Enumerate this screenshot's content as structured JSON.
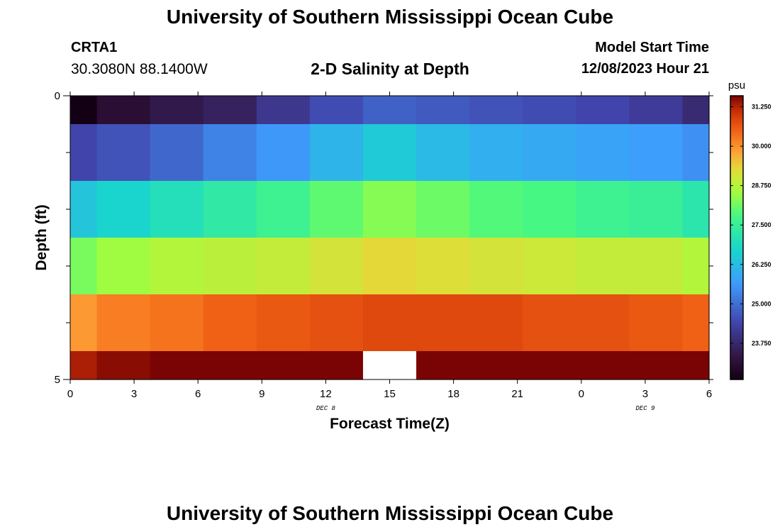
{
  "header": {
    "title": "University of Southern Mississippi Ocean Cube",
    "station": "CRTA1",
    "coords": "30.3080N  88.1400W",
    "subtitle": "2-D Salinity at Depth",
    "model_start_label": "Model Start Time",
    "model_start_value": "12/08/2023 Hour 21"
  },
  "footer": {
    "title": "University of Southern Mississippi Ocean Cube"
  },
  "chart_data": {
    "type": "heatmap",
    "title": "2-D Salinity at Depth",
    "xlabel": "Forecast Time(Z)",
    "ylabel": "Depth (ft)",
    "x_hours": [
      0,
      3,
      6,
      9,
      12,
      15,
      18,
      21,
      24,
      27,
      30
    ],
    "x_tick_labels": [
      "0",
      "3",
      "6",
      "9",
      "12",
      "15",
      "18",
      "21",
      "0",
      "3",
      "6"
    ],
    "xlim": [
      0,
      30
    ],
    "date_labels": [
      {
        "text": "DEC 8",
        "hour": 12
      },
      {
        "text": "DEC 9",
        "hour": 27
      }
    ],
    "ylim": [
      0,
      5
    ],
    "y_tick_labels": [
      {
        "value": 0,
        "label": "0"
      },
      {
        "value": 5,
        "label": "5"
      }
    ],
    "y_minor_ticks": [
      1,
      2,
      3,
      4
    ],
    "column_edges": [
      0,
      1.25,
      3.75,
      6.25,
      8.75,
      11.25,
      13.75,
      16.25,
      18.75,
      21.25,
      23.75,
      26.25,
      28.75,
      30
    ],
    "row_edges": [
      0,
      0.5,
      1.5,
      2.5,
      3.5,
      4.5,
      5
    ],
    "values": [
      [
        22.4,
        23.1,
        23.4,
        23.6,
        24.1,
        24.5,
        24.8,
        24.7,
        24.6,
        24.5,
        24.4,
        24.2,
        23.8
      ],
      [
        24.4,
        24.6,
        24.9,
        25.3,
        25.6,
        26.1,
        26.5,
        26.2,
        26.0,
        25.9,
        25.8,
        25.7,
        25.5
      ],
      [
        26.4,
        26.7,
        27.0,
        27.3,
        27.6,
        28.0,
        28.3,
        28.1,
        27.9,
        27.8,
        27.6,
        27.5,
        27.2
      ],
      [
        28.2,
        28.5,
        28.7,
        28.8,
        28.9,
        29.1,
        29.3,
        29.2,
        29.1,
        29.0,
        28.9,
        28.9,
        28.7
      ],
      [
        29.9,
        30.2,
        30.3,
        30.5,
        30.6,
        30.7,
        30.8,
        30.8,
        30.8,
        30.7,
        30.7,
        30.6,
        30.5
      ],
      [
        31.3,
        31.5,
        31.6,
        31.8,
        32.0,
        32.2,
        null,
        32.4,
        32.3,
        32.2,
        32.1,
        32.0,
        31.8
      ]
    ],
    "colorbar": {
      "unit": "psu",
      "min": 22.6,
      "max": 31.6,
      "ticks": [
        "31.250",
        "30.000",
        "28.750",
        "27.500",
        "26.250",
        "25.000",
        "23.750"
      ],
      "tick_values": [
        31.25,
        30.0,
        28.75,
        27.5,
        26.25,
        25.0,
        23.75
      ]
    }
  }
}
